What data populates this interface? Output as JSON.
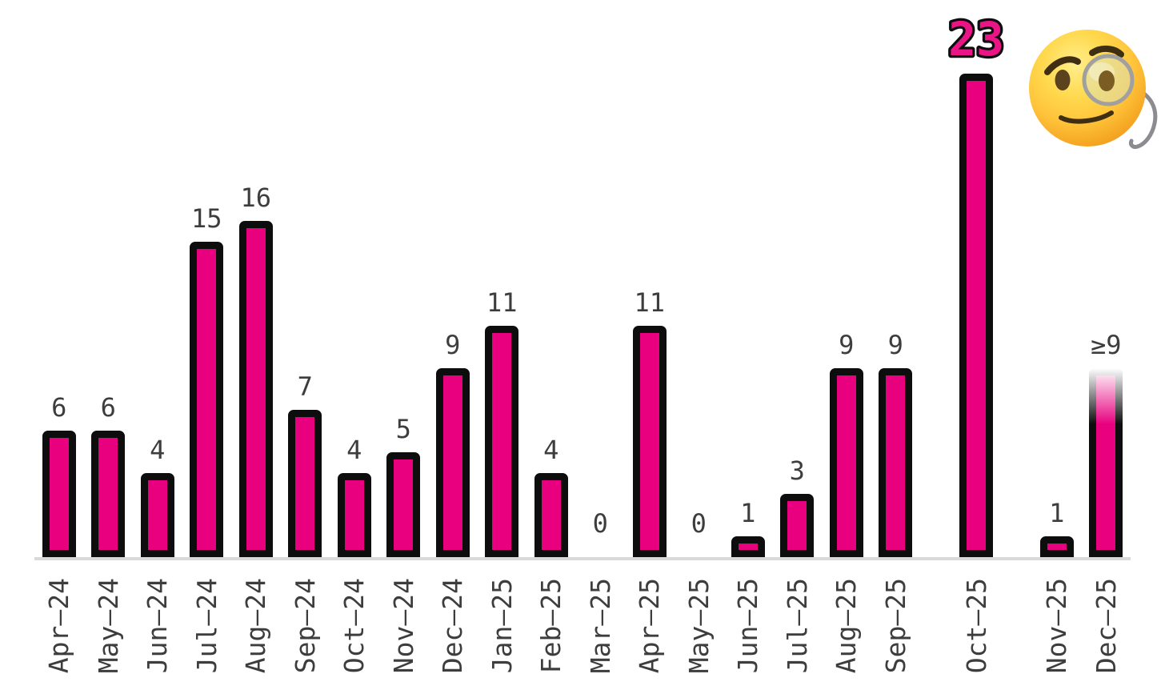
{
  "chart_data": {
    "type": "bar",
    "categories": [
      "Apr–24",
      "May–24",
      "Jun–24",
      "Jul–24",
      "Aug–24",
      "Sep–24",
      "Oct–24",
      "Nov–24",
      "Dec–24",
      "Jan–25",
      "Feb–25",
      "Mar–25",
      "Apr–25",
      "May–25",
      "Jun–25",
      "Jul–25",
      "Aug–25",
      "Sep–25",
      "Oct–25",
      "Nov–25",
      "Dec–25"
    ],
    "values": [
      6,
      6,
      4,
      15,
      16,
      7,
      4,
      5,
      9,
      11,
      4,
      0,
      11,
      0,
      1,
      3,
      9,
      9,
      23,
      1,
      9
    ],
    "display_labels": [
      "6",
      "6",
      "4",
      "15",
      "16",
      "7",
      "4",
      "5",
      "9",
      "11",
      "4",
      "0",
      "11",
      "0",
      "1",
      "3",
      "9",
      "9",
      "23",
      "1",
      "≥9"
    ],
    "title": "",
    "xlabel": "",
    "ylabel": "",
    "ylim": [
      0,
      23
    ],
    "grid": false,
    "legend_position": "none",
    "highlight": {
      "index": 18,
      "label": "23"
    },
    "partial_bar": {
      "index": 20,
      "label": "≥9",
      "note": "bar fades to white at top"
    }
  },
  "annotations": {
    "emoji": "face-with-monocle"
  },
  "colors": {
    "bar_fill": "#e8007f",
    "bar_border": "#0d0d0d",
    "label_text": "#3d3d3d",
    "highlight_label_fill": "#ea1486",
    "highlight_label_stroke": "#0d0d0d",
    "axis_line": "#d9d9d9",
    "background": "#ffffff",
    "emoji_face": "#ffd94e",
    "emoji_chain": "#8b8b90"
  }
}
